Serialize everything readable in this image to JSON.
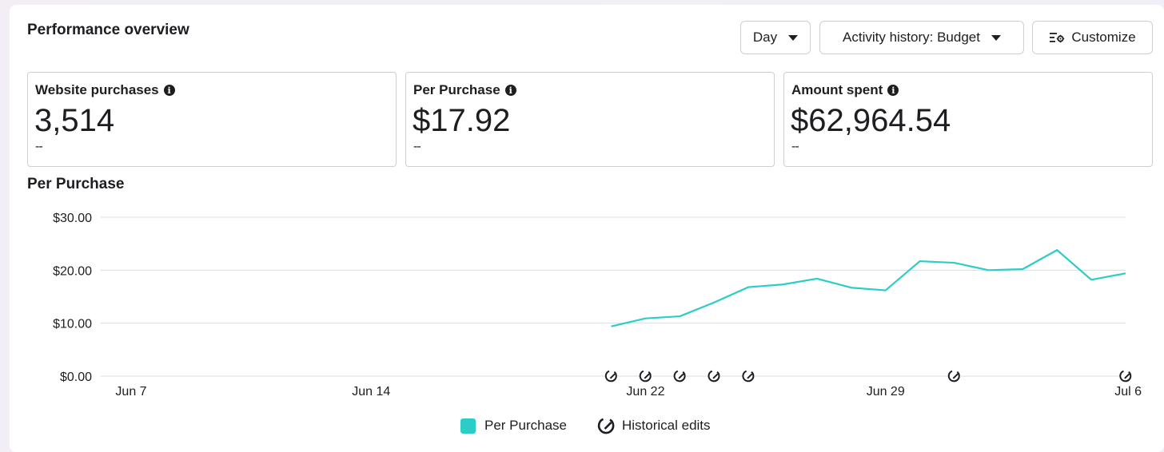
{
  "header": {
    "title": "Performance overview",
    "day_button": "Day",
    "activity_button": "Activity history: Budget",
    "customize_button": "Customize"
  },
  "cards": [
    {
      "label": "Website purchases",
      "value": "3,514",
      "compare": "--"
    },
    {
      "label": "Per Purchase",
      "value": "$17.92",
      "compare": "--"
    },
    {
      "label": "Amount spent",
      "value": "$62,964.54",
      "compare": "--"
    }
  ],
  "chart_title": "Per Purchase",
  "legend": {
    "series_label": "Per Purchase",
    "edits_label": "Historical edits"
  },
  "colors": {
    "series": "#2ccdc6",
    "grid": "#dadde1"
  },
  "chart_data": {
    "type": "line",
    "xlabel": "",
    "ylabel": "",
    "ylim": [
      0,
      30
    ],
    "y_ticks": [
      0,
      10,
      20,
      30
    ],
    "y_tick_labels": [
      "$0.00",
      "$10.00",
      "$20.00",
      "$30.00"
    ],
    "x_range": [
      "2024-06-07",
      "2024-07-06"
    ],
    "x_ticks": [
      "2024-06-07",
      "2024-06-14",
      "2024-06-22",
      "2024-06-29",
      "2024-07-06"
    ],
    "x_tick_labels": [
      "Jun 7",
      "Jun 14",
      "Jun 22",
      "Jun 29",
      "Jul 6"
    ],
    "series": [
      {
        "name": "Per Purchase",
        "x": [
          "2024-06-21",
          "2024-06-22",
          "2024-06-23",
          "2024-06-24",
          "2024-06-25",
          "2024-06-26",
          "2024-06-27",
          "2024-06-28",
          "2024-06-29",
          "2024-06-30",
          "2024-07-01",
          "2024-07-02",
          "2024-07-03",
          "2024-07-04",
          "2024-07-05",
          "2024-07-06"
        ],
        "values": [
          9.4,
          10.9,
          11.3,
          13.9,
          16.8,
          17.3,
          18.4,
          16.7,
          16.2,
          21.7,
          21.4,
          20.0,
          20.2,
          23.8,
          18.2,
          19.4
        ]
      }
    ],
    "historical_edits": [
      "2024-06-21",
      "2024-06-22",
      "2024-06-23",
      "2024-06-24",
      "2024-06-25",
      "2024-07-01",
      "2024-07-06"
    ]
  }
}
